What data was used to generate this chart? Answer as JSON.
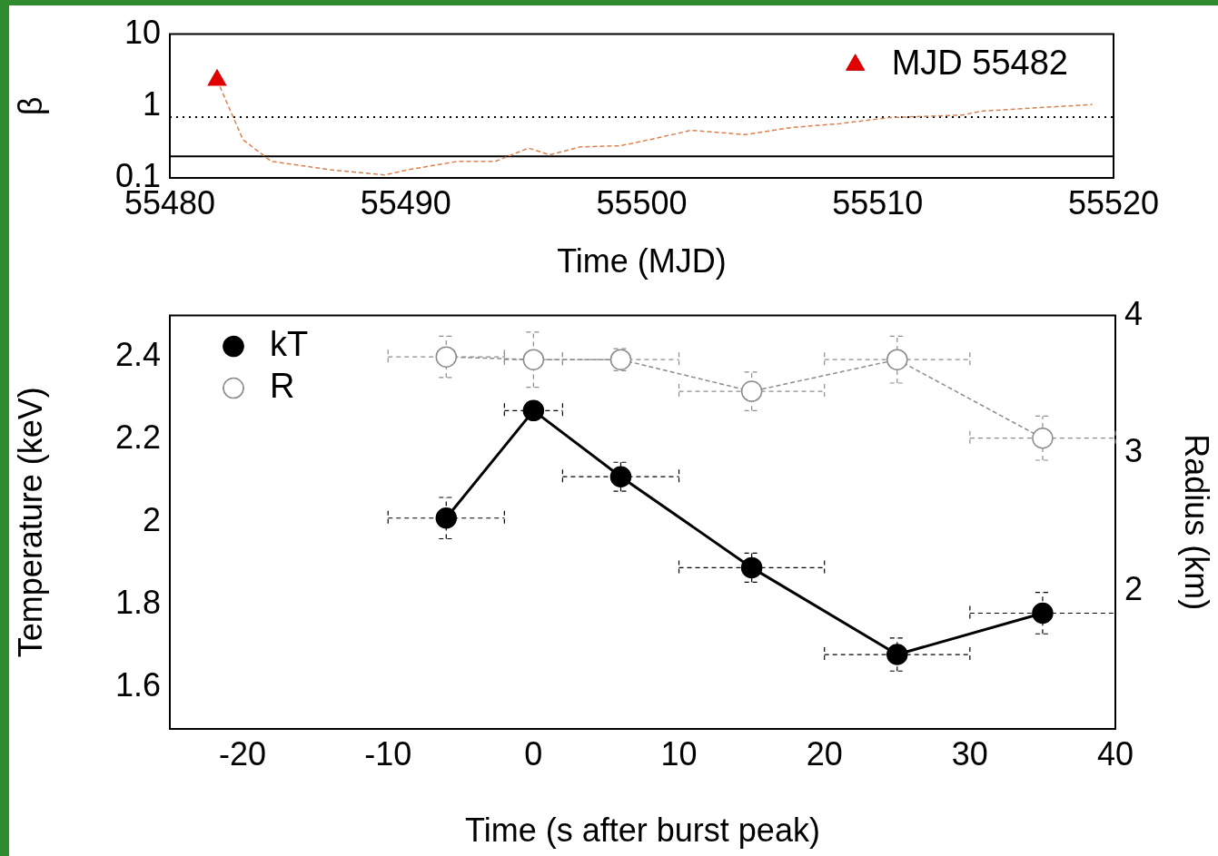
{
  "chart_data": [
    {
      "type": "line",
      "xlabel": "Time (MJD)",
      "ylabel": "β",
      "log": "y",
      "grid": false,
      "legend": "top right",
      "xlim": [
        55480,
        55520
      ],
      "xticks": [
        55480,
        55490,
        55500,
        55510,
        55520
      ],
      "ylim": [
        0.1,
        10
      ],
      "yticks": [
        0.1,
        1,
        10
      ],
      "ref_lines": [
        {
          "axis": "y",
          "value": 0.7,
          "line_style": "dotted",
          "color": "#000000"
        },
        {
          "axis": "y",
          "value": 0.2,
          "line_style": "solid",
          "color": "#000000"
        }
      ],
      "series": [
        {
          "name": "MJD 55482",
          "type": "scatter",
          "marker": "triangle",
          "color": "#e00000",
          "x": [
            55482
          ],
          "values": [
            2.3
          ]
        },
        {
          "type": "line",
          "marker": "none",
          "line_style": "dashed",
          "color": "#d9824f",
          "x": [
            55482,
            55483.1,
            55484.3,
            55486.8,
            55489.1,
            55490.1,
            55492.2,
            55493.8,
            55495.2,
            55496.1,
            55497.4,
            55499.1,
            55500.5,
            55502.1,
            55504.4,
            55506.3,
            55508.4,
            55510.5,
            55513.6,
            55514.4,
            55519.1
          ],
          "values": [
            2.3,
            0.34,
            0.17,
            0.13,
            0.11,
            0.13,
            0.17,
            0.17,
            0.26,
            0.21,
            0.27,
            0.28,
            0.35,
            0.46,
            0.4,
            0.5,
            0.57,
            0.69,
            0.75,
            0.85,
            1.05
          ]
        }
      ]
    },
    {
      "type": "line",
      "xlabel": "Time (s after burst peak)",
      "ylabel": "Temperature (keV)",
      "y2label": "Radius (km)",
      "grid": false,
      "legend": "top left",
      "xlim": [
        -25,
        40
      ],
      "xticks": [
        -20,
        -10,
        0,
        10,
        20,
        30,
        40
      ],
      "ylim": [
        1.5,
        2.5
      ],
      "yticks": [
        1.6,
        1.8,
        2,
        2.2,
        2.4
      ],
      "y2lim": [
        1,
        4
      ],
      "y2ticks": [
        2,
        3,
        4
      ],
      "series": [
        {
          "name": "kT",
          "marker": "circle",
          "line_style": "solid",
          "color": "#000000",
          "x": [
            -6,
            0,
            6,
            15,
            25,
            35
          ],
          "values": [
            2.01,
            2.27,
            2.11,
            1.89,
            1.68,
            1.78
          ],
          "errors": [
            0.05,
            0.02,
            0.035,
            0.035,
            0.04,
            0.05
          ],
          "xerrors": [
            4,
            2,
            4,
            5,
            5,
            5
          ]
        },
        {
          "name": "R",
          "axis": "y2",
          "marker": "circle",
          "line_style": "dashed",
          "color": "#8c8c8c",
          "x": [
            -6,
            0,
            6,
            15,
            25,
            35
          ],
          "values": [
            3.7,
            3.68,
            3.68,
            3.45,
            3.68,
            3.11
          ],
          "errors": [
            0.15,
            0.2,
            0.08,
            0.14,
            0.17,
            0.16
          ],
          "xerrors": [
            4,
            2,
            4,
            5,
            5,
            5
          ]
        }
      ]
    }
  ]
}
